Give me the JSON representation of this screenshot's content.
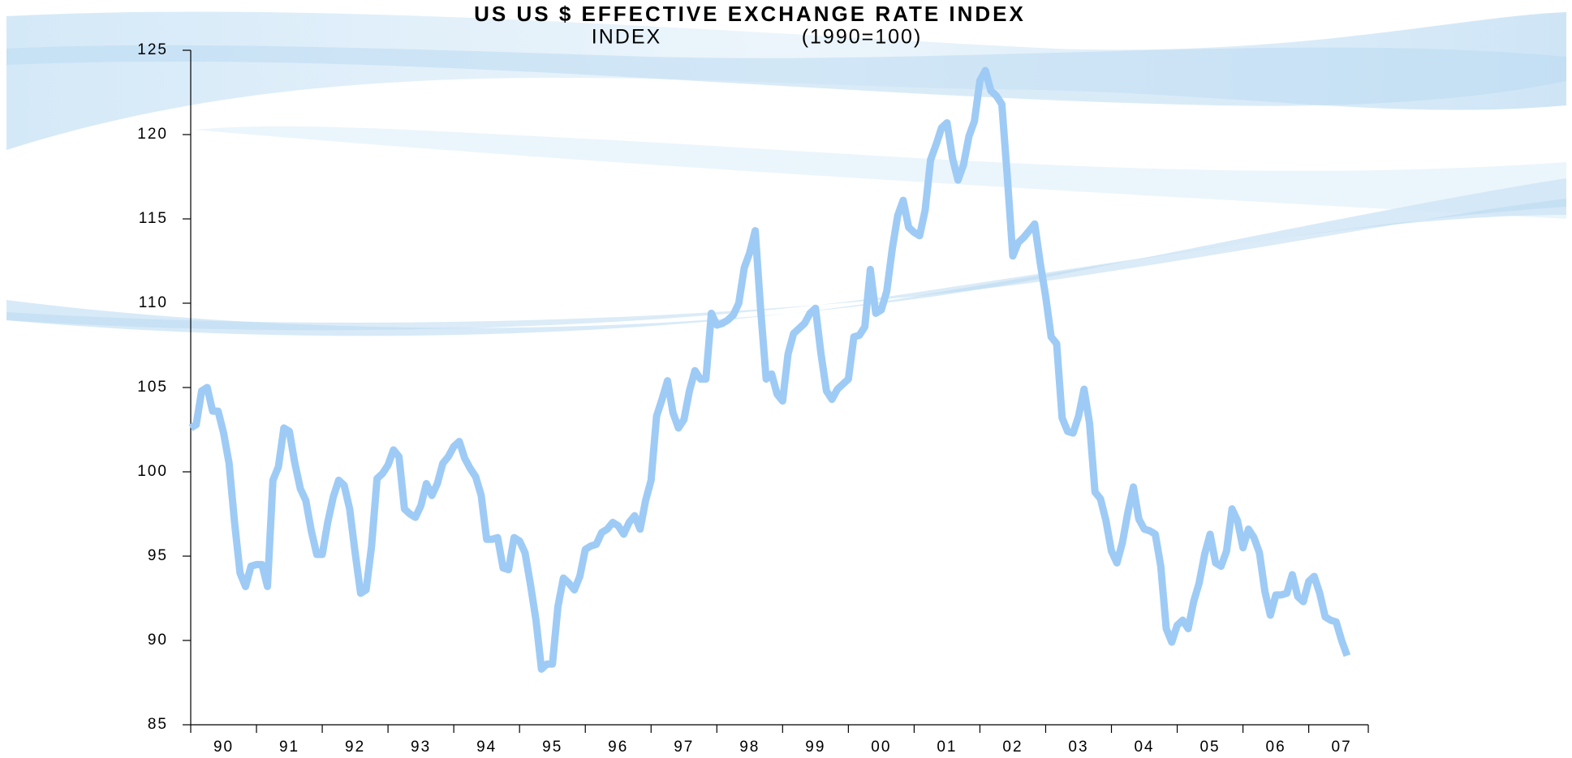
{
  "chart_data": {
    "type": "line",
    "title": "US US $ EFFECTIVE EXCHANGE RATE INDEX",
    "y_label": "INDEX",
    "subtitle": "(1990=100)",
    "categories": [
      null,
      null,
      null,
      null,
      null,
      null,
      "90",
      null,
      null,
      null,
      null,
      null,
      null,
      null,
      null,
      null,
      null,
      null,
      "91",
      null,
      null,
      null,
      null,
      null,
      null,
      null,
      null,
      null,
      null,
      null,
      "92",
      null,
      null,
      null,
      null,
      null,
      null,
      null,
      null,
      null,
      null,
      null,
      "93",
      null,
      null,
      null,
      null,
      null,
      null,
      null,
      null,
      null,
      null,
      null,
      "94",
      null,
      null,
      null,
      null,
      null,
      null,
      null,
      null,
      null,
      null,
      null,
      "95",
      null,
      null,
      null,
      null,
      null,
      null,
      null,
      null,
      null,
      null,
      null,
      "96",
      null,
      null,
      null,
      null,
      null,
      null,
      null,
      null,
      null,
      null,
      null,
      "97",
      null,
      null,
      null,
      null,
      null,
      null,
      null,
      null,
      null,
      null,
      null,
      "98",
      null,
      null,
      null,
      null,
      null,
      null,
      null,
      null,
      null,
      null,
      null,
      "99",
      null,
      null,
      null,
      null,
      null,
      null,
      null,
      null,
      null,
      null,
      null,
      "00",
      null,
      null,
      null,
      null,
      null,
      null,
      null,
      null,
      null,
      null,
      null,
      "01",
      null,
      null,
      null,
      null,
      null,
      null,
      null,
      null,
      null,
      null,
      null,
      "02",
      null,
      null,
      null,
      null,
      null,
      null,
      null,
      null,
      null,
      null,
      null,
      "03",
      null,
      null,
      null,
      null,
      null,
      null,
      null,
      null,
      null,
      null,
      null,
      "04",
      null,
      null,
      null,
      null,
      null,
      null,
      null,
      null,
      null,
      null,
      null,
      "05",
      null,
      null,
      null,
      null,
      null,
      null,
      null,
      null,
      null,
      null,
      null,
      "06",
      null,
      null,
      null,
      null,
      null,
      null,
      null,
      null,
      null,
      null,
      null,
      "07",
      null
    ],
    "series": [
      {
        "color": "#9ecbf5",
        "values": [
          102.6,
          102.8,
          104.8,
          105.0,
          103.6,
          103.6,
          102.3,
          100.5,
          97,
          94,
          93.2,
          94.4,
          94.5,
          94.5,
          93.2,
          99.5,
          100.3,
          102.6,
          102.4,
          100.5,
          99,
          98.3,
          96.5,
          95.1,
          95.1,
          97,
          98.5,
          99.5,
          99.2,
          97.8,
          95.2,
          92.8,
          93,
          95.6,
          99.6,
          99.9,
          100.4,
          101.3,
          100.9,
          97.8,
          97.5,
          97.3,
          98,
          99.3,
          98.6,
          99.3,
          100.5,
          100.9,
          101.5,
          101.8,
          100.8,
          100.2,
          99.7,
          98.6,
          96,
          96,
          96.1,
          94.3,
          94.2,
          96.1,
          95.9,
          95.2,
          93.3,
          91.2,
          88.3,
          88.6,
          88.6,
          92,
          93.7,
          93.4,
          93,
          93.8,
          95.4,
          95.6,
          95.7,
          96.4,
          96.6,
          97,
          96.8,
          96.3,
          97,
          97.4,
          96.6,
          98.3,
          99.5,
          103.3,
          104.3,
          105.4,
          103.5,
          102.6,
          103.1,
          104.8,
          106,
          105.5,
          105.5,
          109.4,
          108.7,
          108.8,
          109,
          109.3,
          110,
          112.1,
          113,
          114.3,
          109.6,
          105.5,
          105.8,
          104.6,
          104.2,
          107,
          108.2,
          108.5,
          108.8,
          109.4,
          109.7,
          107,
          104.8,
          104.3,
          104.9,
          105.2,
          105.5,
          108,
          108.1,
          108.6,
          112,
          109.4,
          109.6,
          110.7,
          113.2,
          115.2,
          116.1,
          114.5,
          114.2,
          114,
          115.5,
          118.5,
          119.4,
          120.4,
          120.7,
          118.6,
          117.3,
          118.2,
          119.9,
          120.8,
          123.2,
          123.8,
          122.6,
          122.3,
          121.8,
          117.5,
          112.8,
          113.6,
          113.9,
          114.3,
          114.7,
          112.4,
          110.4,
          108,
          107.6,
          103.2,
          102.4,
          102.3,
          103.3,
          104.9,
          102.9,
          98.8,
          98.4,
          97.1,
          95.3,
          94.6,
          95.8,
          97.6,
          99.1,
          97.2,
          96.6,
          96.5,
          96.3,
          94.4,
          90.7,
          89.9,
          90.9,
          91.2,
          90.7,
          92.3,
          93.4,
          95.1,
          96.3,
          94.6,
          94.4,
          95.3,
          97.8,
          97.1,
          95.5,
          96.6,
          96.1,
          95.2,
          92.9,
          91.5,
          92.7,
          92.7,
          92.8,
          93.9,
          92.6,
          92.3,
          93.5,
          93.8,
          92.8,
          91.4,
          91.2,
          91.1,
          90,
          89.1
        ]
      }
    ],
    "ylim": [
      85,
      125
    ],
    "yticks": [
      85,
      90,
      95,
      100,
      105,
      110,
      115,
      120,
      125
    ],
    "grid": false
  }
}
